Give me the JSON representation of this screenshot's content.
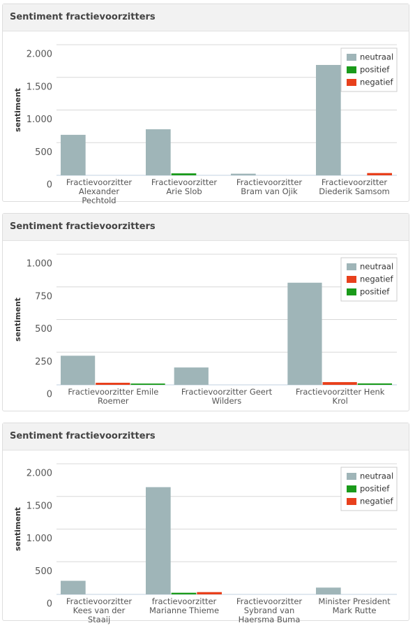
{
  "chart_data": [
    {
      "type": "bar",
      "title": "Sentiment fractievoorzitters",
      "y_label": "sentiment",
      "categories": [
        "Fractievoorzitter Alexander Pechtold",
        "Fractievoorzitter Arie Slob",
        "Fractievoorzitter Bram van Ojik",
        "Fractievoorzitter Diederik Samsom"
      ],
      "series": [
        {
          "name": "neutraal",
          "color": "#9fb5b8",
          "values": [
            620,
            705,
            25,
            1690
          ]
        },
        {
          "name": "positief",
          "color": "#1a9a1a",
          "values": [
            0,
            30,
            0,
            0
          ]
        },
        {
          "name": "negatief",
          "color": "#e8401c",
          "values": [
            0,
            0,
            0,
            35
          ]
        }
      ],
      "ylim": [
        0,
        2000
      ],
      "yticks": [
        0,
        500,
        {
          "value": 1000,
          "label": "1.000"
        },
        {
          "value": 1500,
          "label": "1.500"
        },
        {
          "value": 2000,
          "label": "2.000"
        }
      ],
      "grid": true,
      "legend": "top-right"
    },
    {
      "type": "bar",
      "title": "Sentiment fractievoorzitters",
      "y_label": "sentiment",
      "categories": [
        "Fractievoorzitter Emile Roemer",
        "Fractievoorzitter Geert Wilders",
        "Fractievoorzitter Henk Krol"
      ],
      "series": [
        {
          "name": "neutraal",
          "color": "#9fb5b8",
          "values": [
            223,
            133,
            782
          ]
        },
        {
          "name": "negatief",
          "color": "#e8401c",
          "values": [
            16,
            0,
            21
          ]
        },
        {
          "name": "positief",
          "color": "#1a9a1a",
          "values": [
            10,
            0,
            11
          ]
        }
      ],
      "ylim": [
        0,
        1000
      ],
      "yticks": [
        0,
        250,
        500,
        750,
        {
          "value": 1000,
          "label": "1.000"
        }
      ],
      "grid": true,
      "legend": "top-right"
    },
    {
      "type": "bar",
      "title": "Sentiment fractievoorzitters",
      "y_label": "sentiment",
      "categories": [
        "Fractievoorzitter Kees van der Staaij",
        "fractievoorzitter Marianne Thieme",
        "Fractievoorzitter Sybrand van Haersma Buma",
        "Minister President Mark Rutte"
      ],
      "series": [
        {
          "name": "neutraal",
          "color": "#9fb5b8",
          "values": [
            208,
            1642,
            0,
            104
          ]
        },
        {
          "name": "positief",
          "color": "#1a9a1a",
          "values": [
            0,
            25,
            0,
            0
          ]
        },
        {
          "name": "negatief",
          "color": "#e8401c",
          "values": [
            0,
            35,
            0,
            0
          ]
        }
      ],
      "ylim": [
        0,
        2000
      ],
      "yticks": [
        0,
        500,
        {
          "value": 1000,
          "label": "1.000"
        },
        {
          "value": 1500,
          "label": "1.500"
        },
        {
          "value": 2000,
          "label": "2.000"
        }
      ],
      "grid": true,
      "legend": "top-right"
    }
  ]
}
